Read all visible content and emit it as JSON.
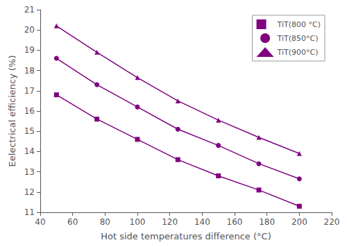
{
  "chart_data": {
    "type": "line",
    "x": [
      50,
      75,
      100,
      125,
      150,
      175,
      200
    ],
    "series": [
      {
        "name": "TiT(800 °C)",
        "color": "#800080",
        "marker": "square",
        "values": [
          16.8,
          15.6,
          14.6,
          13.6,
          12.8,
          12.1,
          11.3
        ]
      },
      {
        "name": "TiT(850°C)",
        "color": "#800080",
        "marker": "circle",
        "values": [
          18.6,
          17.3,
          16.2,
          15.1,
          14.3,
          13.4,
          12.65
        ]
      },
      {
        "name": "TiT(900°C)",
        "color": "#800080",
        "marker": "triangle",
        "values": [
          20.2,
          18.9,
          17.65,
          16.5,
          15.55,
          14.7,
          13.9
        ]
      }
    ],
    "xlabel": "Hot side temperatures difference (°C)",
    "ylabel": "Eelectrical efficiency (%)",
    "xlim": [
      40,
      220
    ],
    "xticks": [
      40,
      60,
      80,
      100,
      120,
      140,
      160,
      180,
      200,
      220
    ],
    "ylim": [
      11,
      21
    ],
    "yticks": [
      11,
      12,
      13,
      14,
      15,
      16,
      17,
      18,
      19,
      20,
      21
    ],
    "legend": "upper right",
    "grid": false
  }
}
